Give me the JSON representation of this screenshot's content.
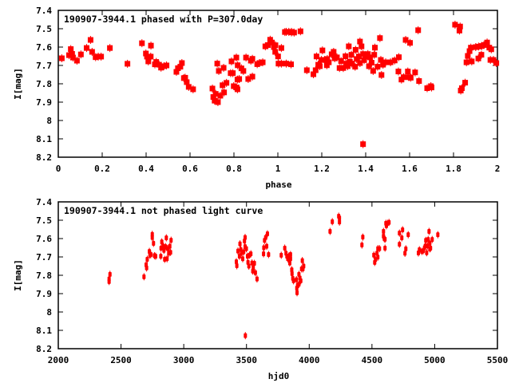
{
  "chart_data": [
    {
      "type": "scatter",
      "title": "190907-3944.1 phased with P=307.0day",
      "xlabel": "phase",
      "ylabel": "I[mag]",
      "xlim": [
        0,
        2
      ],
      "ylim": [
        8.2,
        7.4
      ],
      "y_inverted": true,
      "xticks": [
        "0",
        "0.2",
        "0.4",
        "0.6",
        "0.8",
        "1",
        "1.2",
        "1.4",
        "1.6",
        "1.8",
        "2"
      ],
      "yticks": [
        "7.4",
        "7.5",
        "7.6",
        "7.7",
        "7.8",
        "7.9",
        "8",
        "8.1",
        "8.2"
      ],
      "grid": false,
      "color": "#ff0000",
      "points": [
        [
          0.016,
          7.661
        ],
        [
          0.049,
          7.644
        ],
        [
          0.057,
          7.611
        ],
        [
          0.063,
          7.637
        ],
        [
          0.067,
          7.657
        ],
        [
          0.085,
          7.674
        ],
        [
          0.103,
          7.64
        ],
        [
          0.129,
          7.605
        ],
        [
          0.147,
          7.561
        ],
        [
          0.154,
          7.626
        ],
        [
          0.17,
          7.655
        ],
        [
          0.182,
          7.652
        ],
        [
          0.195,
          7.652
        ],
        [
          0.235,
          7.605
        ],
        [
          0.315,
          7.691
        ],
        [
          0.381,
          7.579
        ],
        [
          0.399,
          7.635
        ],
        [
          0.404,
          7.652
        ],
        [
          0.41,
          7.678
        ],
        [
          0.421,
          7.652
        ],
        [
          0.422,
          7.592
        ],
        [
          0.44,
          7.694
        ],
        [
          0.446,
          7.681
        ],
        [
          0.459,
          7.696
        ],
        [
          0.468,
          7.712
        ],
        [
          0.481,
          7.704
        ],
        [
          0.493,
          7.7
        ],
        [
          0.538,
          7.735
        ],
        [
          0.545,
          7.715
        ],
        [
          0.556,
          7.707
        ],
        [
          0.563,
          7.687
        ],
        [
          0.572,
          7.769
        ],
        [
          0.578,
          7.767
        ],
        [
          0.585,
          7.791
        ],
        [
          0.594,
          7.817
        ],
        [
          0.614,
          7.83
        ],
        [
          0.702,
          7.826
        ],
        [
          0.706,
          7.872
        ],
        [
          0.712,
          7.892
        ],
        [
          0.717,
          7.855
        ],
        [
          0.724,
          7.69
        ],
        [
          0.727,
          7.9
        ],
        [
          0.731,
          7.73
        ],
        [
          0.738,
          7.865
        ],
        [
          0.748,
          7.808
        ],
        [
          0.753,
          7.713
        ],
        [
          0.755,
          7.847
        ],
        [
          0.766,
          7.795
        ],
        [
          0.785,
          7.742
        ],
        [
          0.789,
          7.678
        ],
        [
          0.795,
          7.742
        ],
        [
          0.799,
          7.813
        ],
        [
          0.811,
          7.657
        ],
        [
          0.812,
          7.82
        ],
        [
          0.816,
          7.83
        ],
        [
          0.817,
          7.699
        ],
        [
          0.816,
          7.777
        ],
        [
          0.824,
          7.774
        ],
        [
          0.834,
          7.716
        ],
        [
          0.843,
          7.73
        ],
        [
          0.855,
          7.657
        ],
        [
          0.865,
          7.774
        ],
        [
          0.877,
          7.674
        ],
        [
          0.884,
          7.761
        ],
        [
          0.884,
          7.664
        ],
        [
          0.906,
          7.693
        ],
        [
          0.916,
          7.687
        ],
        [
          0.931,
          7.683
        ],
        [
          0.943,
          7.596
        ],
        [
          0.955,
          7.589
        ],
        [
          0.965,
          7.56
        ],
        [
          0.973,
          7.575
        ],
        [
          0.982,
          7.6
        ],
        [
          0.989,
          7.59
        ],
        [
          0.988,
          7.626
        ],
        [
          1.001,
          7.651
        ],
        [
          1.003,
          7.69
        ],
        [
          1.016,
          7.605
        ],
        [
          1.016,
          7.69
        ],
        [
          1.032,
          7.518
        ],
        [
          1.038,
          7.69
        ],
        [
          1.038,
          7.517
        ],
        [
          1.05,
          7.517
        ],
        [
          1.062,
          7.517
        ],
        [
          1.062,
          7.52
        ],
        [
          1.074,
          7.521
        ],
        [
          1.103,
          7.514
        ],
        [
          1.06,
          7.694
        ],
        [
          1.132,
          7.726
        ],
        [
          1.162,
          7.748
        ],
        [
          1.172,
          7.726
        ],
        [
          1.176,
          7.651
        ],
        [
          1.184,
          7.696
        ],
        [
          1.191,
          7.704
        ],
        [
          1.198,
          7.67
        ],
        [
          1.203,
          7.618
        ],
        [
          1.213,
          7.67
        ],
        [
          1.223,
          7.699
        ],
        [
          1.225,
          7.665
        ],
        [
          1.232,
          7.683
        ],
        [
          1.245,
          7.639
        ],
        [
          1.254,
          7.626
        ],
        [
          1.259,
          7.661
        ],
        [
          1.269,
          7.656
        ],
        [
          1.281,
          7.714
        ],
        [
          1.288,
          7.676
        ],
        [
          1.298,
          7.714
        ],
        [
          1.308,
          7.65
        ],
        [
          1.313,
          7.69
        ],
        [
          1.318,
          7.704
        ],
        [
          1.323,
          7.596
        ],
        [
          1.328,
          7.68
        ],
        [
          1.335,
          7.642
        ],
        [
          1.337,
          7.69
        ],
        [
          1.352,
          7.707
        ],
        [
          1.354,
          7.615
        ],
        [
          1.359,
          7.665
        ],
        [
          1.369,
          7.651
        ],
        [
          1.374,
          7.57
        ],
        [
          1.374,
          7.687
        ],
        [
          1.381,
          7.596
        ],
        [
          1.388,
          8.129
        ],
        [
          1.388,
          7.638
        ],
        [
          1.393,
          7.671
        ],
        [
          1.401,
          7.652
        ],
        [
          1.41,
          7.638
        ],
        [
          1.415,
          7.704
        ],
        [
          1.42,
          7.656
        ],
        [
          1.427,
          7.685
        ],
        [
          1.434,
          7.73
        ],
        [
          1.439,
          7.642
        ],
        [
          1.442,
          7.603
        ],
        [
          1.454,
          7.707
        ],
        [
          1.465,
          7.551
        ],
        [
          1.469,
          7.67
        ],
        [
          1.472,
          7.752
        ],
        [
          1.479,
          7.696
        ],
        [
          1.491,
          7.683
        ],
        [
          1.513,
          7.683
        ],
        [
          1.532,
          7.673
        ],
        [
          1.551,
          7.655
        ],
        [
          1.549,
          7.733
        ],
        [
          1.563,
          7.777
        ],
        [
          1.573,
          7.764
        ],
        [
          1.582,
          7.561
        ],
        [
          1.592,
          7.733
        ],
        [
          1.597,
          7.764
        ],
        [
          1.602,
          7.577
        ],
        [
          1.605,
          7.767
        ],
        [
          1.625,
          7.738
        ],
        [
          1.639,
          7.508
        ],
        [
          1.643,
          7.785
        ],
        [
          1.68,
          7.824
        ],
        [
          1.697,
          7.813
        ],
        [
          1.7,
          7.82
        ],
        [
          1.807,
          7.478
        ],
        [
          1.827,
          7.51
        ],
        [
          1.83,
          7.488
        ],
        [
          1.833,
          7.837
        ],
        [
          1.838,
          7.824
        ],
        [
          1.853,
          7.794
        ],
        [
          1.859,
          7.683
        ],
        [
          1.865,
          7.648
        ],
        [
          1.873,
          7.622
        ],
        [
          1.879,
          7.603
        ],
        [
          1.883,
          7.678
        ],
        [
          1.901,
          7.6
        ],
        [
          1.913,
          7.662
        ],
        [
          1.915,
          7.597
        ],
        [
          1.927,
          7.642
        ],
        [
          1.929,
          7.594
        ],
        [
          1.938,
          7.589
        ],
        [
          1.953,
          7.575
        ],
        [
          1.963,
          7.603
        ],
        [
          1.972,
          7.612
        ],
        [
          1.968,
          7.67
        ],
        [
          1.982,
          7.67
        ],
        [
          1.995,
          7.687
        ]
      ]
    },
    {
      "type": "scatter",
      "title": "190907-3944.1 not phased light curve",
      "xlabel": "hjd0",
      "ylabel": "I[mag]",
      "xlim": [
        2000,
        5500
      ],
      "ylim": [
        8.2,
        7.4
      ],
      "y_inverted": true,
      "xticks": [
        "2000",
        "2500",
        "3000",
        "3500",
        "4000",
        "4500",
        "5000",
        "5500"
      ],
      "yticks": [
        "7.4",
        "7.5",
        "7.6",
        "7.7",
        "7.8",
        "7.9",
        "8",
        "8.1",
        "8.2"
      ],
      "grid": false,
      "color": "#ff0000",
      "points": [
        [
          2405,
          7.834
        ],
        [
          2405,
          7.82
        ],
        [
          2412,
          7.795
        ],
        [
          2683,
          7.808
        ],
        [
          2700,
          7.743
        ],
        [
          2704,
          7.76
        ],
        [
          2709,
          7.713
        ],
        [
          2726,
          7.67
        ],
        [
          2730,
          7.69
        ],
        [
          2738,
          7.687
        ],
        [
          2749,
          7.577
        ],
        [
          2749,
          7.594
        ],
        [
          2759,
          7.626
        ],
        [
          2766,
          7.693
        ],
        [
          2776,
          7.696
        ],
        [
          2817,
          7.696
        ],
        [
          2819,
          7.652
        ],
        [
          2825,
          7.618
        ],
        [
          2838,
          7.642
        ],
        [
          2842,
          7.664
        ],
        [
          2848,
          7.713
        ],
        [
          2855,
          7.644
        ],
        [
          2861,
          7.596
        ],
        [
          2867,
          7.71
        ],
        [
          2872,
          7.655
        ],
        [
          2880,
          7.68
        ],
        [
          2889,
          7.642
        ],
        [
          2895,
          7.675
        ],
        [
          2899,
          7.609
        ],
        [
          3419,
          7.726
        ],
        [
          3423,
          7.748
        ],
        [
          3432,
          7.668
        ],
        [
          3444,
          7.696
        ],
        [
          3448,
          7.629
        ],
        [
          3455,
          7.66
        ],
        [
          3461,
          7.677
        ],
        [
          3470,
          7.71
        ],
        [
          3478,
          7.672
        ],
        [
          3484,
          7.613
        ],
        [
          3489,
          7.594
        ],
        [
          3491,
          8.129
        ],
        [
          3489,
          7.644
        ],
        [
          3499,
          7.655
        ],
        [
          3508,
          7.696
        ],
        [
          3512,
          7.73
        ],
        [
          3519,
          7.75
        ],
        [
          3525,
          7.69
        ],
        [
          3535,
          7.683
        ],
        [
          3544,
          7.733
        ],
        [
          3550,
          7.777
        ],
        [
          3554,
          7.76
        ],
        [
          3563,
          7.735
        ],
        [
          3571,
          7.786
        ],
        [
          3584,
          7.82
        ],
        [
          3636,
          7.683
        ],
        [
          3638,
          7.65
        ],
        [
          3644,
          7.61
        ],
        [
          3653,
          7.594
        ],
        [
          3661,
          7.642
        ],
        [
          3667,
          7.574
        ],
        [
          3676,
          7.687
        ],
        [
          3777,
          7.691
        ],
        [
          3805,
          7.652
        ],
        [
          3815,
          7.68
        ],
        [
          3822,
          7.696
        ],
        [
          3829,
          7.71
        ],
        [
          3836,
          7.696
        ],
        [
          3845,
          7.733
        ],
        [
          3851,
          7.687
        ],
        [
          3851,
          7.71
        ],
        [
          3861,
          7.77
        ],
        [
          3863,
          7.791
        ],
        [
          3869,
          7.817
        ],
        [
          3875,
          7.83
        ],
        [
          3898,
          7.824
        ],
        [
          3901,
          7.87
        ],
        [
          3903,
          7.895
        ],
        [
          3907,
          7.856
        ],
        [
          3918,
          7.795
        ],
        [
          3918,
          7.849
        ],
        [
          3926,
          7.815
        ],
        [
          3933,
          7.83
        ],
        [
          3939,
          7.765
        ],
        [
          3945,
          7.72
        ],
        [
          3950,
          7.765
        ],
        [
          3956,
          7.75
        ],
        [
          4166,
          7.561
        ],
        [
          4184,
          7.508
        ],
        [
          4235,
          7.478
        ],
        [
          4241,
          7.488
        ],
        [
          4241,
          7.51
        ],
        [
          4420,
          7.635
        ],
        [
          4427,
          7.592
        ],
        [
          4515,
          7.69
        ],
        [
          4522,
          7.73
        ],
        [
          4528,
          7.714
        ],
        [
          4540,
          7.68
        ],
        [
          4547,
          7.701
        ],
        [
          4547,
          7.655
        ],
        [
          4560,
          7.655
        ],
        [
          4592,
          7.561
        ],
        [
          4592,
          7.587
        ],
        [
          4598,
          7.6
        ],
        [
          4604,
          7.604
        ],
        [
          4604,
          7.652
        ],
        [
          4611,
          7.517
        ],
        [
          4615,
          7.53
        ],
        [
          4624,
          7.517
        ],
        [
          4636,
          7.512
        ],
        [
          4719,
          7.57
        ],
        [
          4719,
          7.631
        ],
        [
          4738,
          7.596
        ],
        [
          4744,
          7.552
        ],
        [
          4763,
          7.68
        ],
        [
          4770,
          7.656
        ],
        [
          4789,
          7.579
        ],
        [
          4870,
          7.678
        ],
        [
          4878,
          7.661
        ],
        [
          4897,
          7.67
        ],
        [
          4908,
          7.667
        ],
        [
          4919,
          7.65
        ],
        [
          4925,
          7.64
        ],
        [
          4929,
          7.61
        ],
        [
          4936,
          7.677
        ],
        [
          4942,
          7.64
        ],
        [
          4948,
          7.605
        ],
        [
          4955,
          7.561
        ],
        [
          4961,
          7.656
        ],
        [
          4961,
          7.626
        ],
        [
          4967,
          7.652
        ],
        [
          4980,
          7.605
        ],
        [
          5025,
          7.579
        ]
      ]
    }
  ]
}
